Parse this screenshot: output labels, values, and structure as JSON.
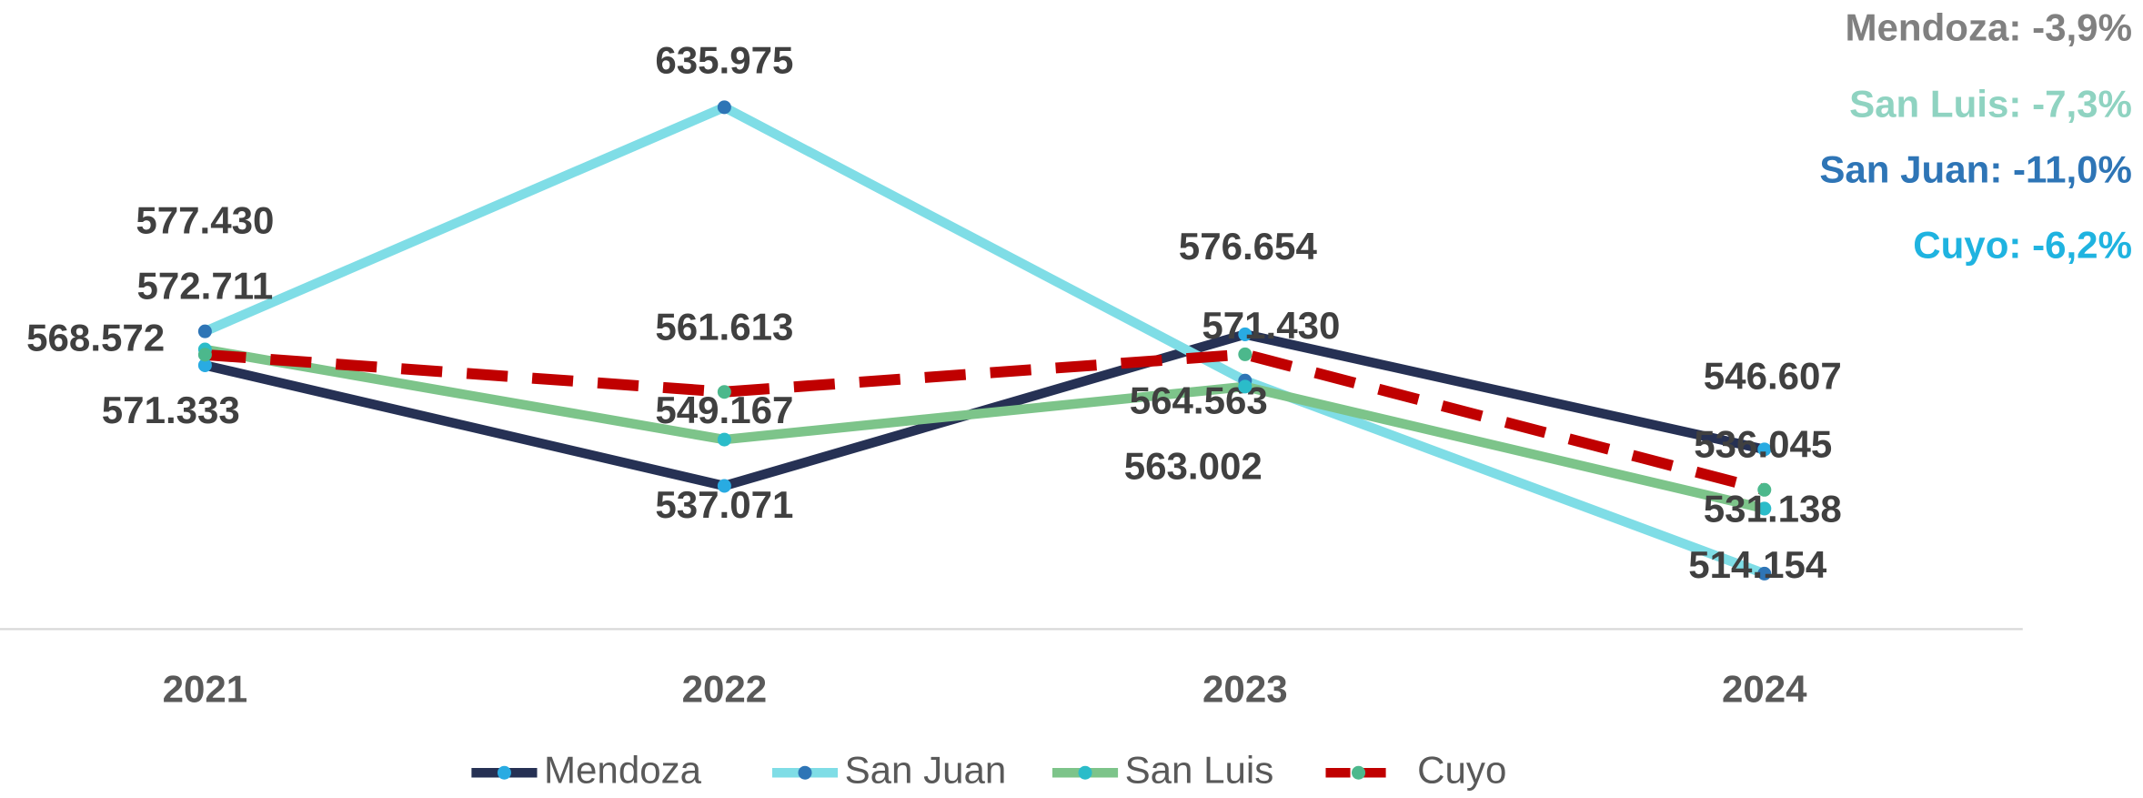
{
  "chart_data": {
    "type": "line",
    "categories": [
      "2021",
      "2022",
      "2023",
      "2024"
    ],
    "series": [
      {
        "name": "Mendoza",
        "color": "#263154",
        "marker_color": "#29abe2",
        "dashed": false,
        "values": [
          568572,
          537071,
          576654,
          546607
        ],
        "value_labels": [
          "568.572",
          "537.071",
          "576.654",
          "546.607"
        ]
      },
      {
        "name": "San Juan",
        "color": "#7fdde6",
        "marker_color": "#2e75b6",
        "dashed": false,
        "values": [
          577430,
          635975,
          564563,
          514154
        ],
        "value_labels": [
          "577.430",
          "635.975",
          "564.563",
          "514.154"
        ]
      },
      {
        "name": "San Luis",
        "color": "#7dc48a",
        "marker_color": "#2bbcc9",
        "dashed": false,
        "values": [
          572711,
          549167,
          563002,
          531138
        ],
        "value_labels": [
          "572.711",
          "549.167",
          "563.002",
          "531.138"
        ]
      },
      {
        "name": "Cuyo",
        "color": "#c00000",
        "marker_color": "#4cb88c",
        "dashed": true,
        "values": [
          571333,
          561613,
          571430,
          536045
        ],
        "value_labels": [
          "571.333",
          "561.613",
          "571.430",
          "536.045"
        ]
      }
    ],
    "annotations": [
      {
        "text": "Mendoza: -3,9%",
        "color": "#808080"
      },
      {
        "text": "San Luis: -7,3%",
        "color": "#8fd3c1"
      },
      {
        "text": "San Juan: -11,0%",
        "color": "#2e75b6"
      },
      {
        "text": "Cuyo: -6,2%",
        "color": "#1fb3e0"
      }
    ],
    "ylim": [
      490000,
      650000
    ],
    "legend": "bottom"
  }
}
